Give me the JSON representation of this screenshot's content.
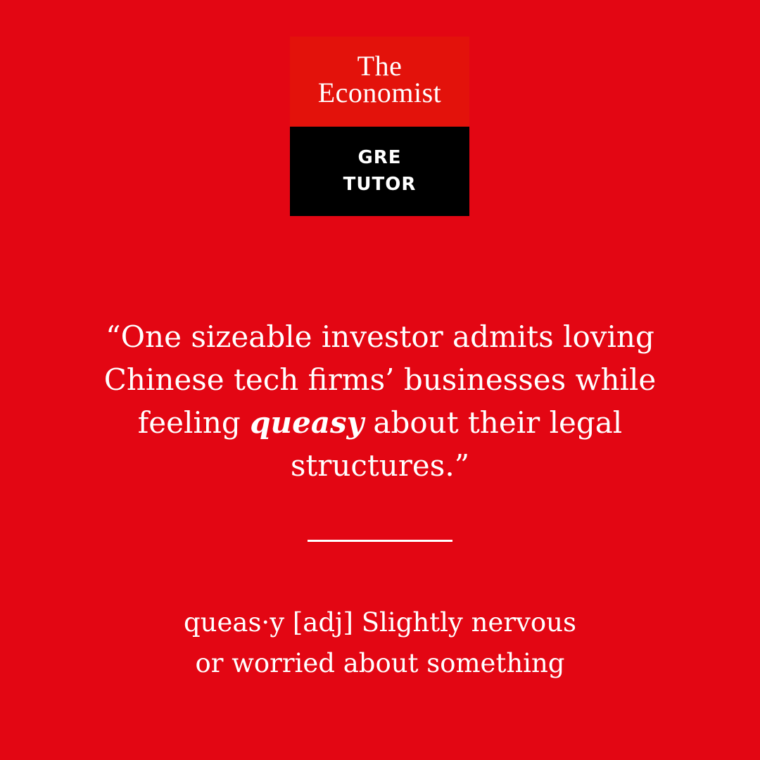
{
  "colors": {
    "background": "#e30613",
    "logo_top": "#e3120b",
    "logo_bottom": "#000000",
    "text": "#ffffff"
  },
  "logo": {
    "line1": "The",
    "line2": "Economist",
    "sub_line1": "GRE",
    "sub_line2": "TUTOR"
  },
  "quote": {
    "line1": "“One sizeable investor admits loving",
    "line2": "Chinese tech firms’ businesses while",
    "line3_before": "feeling ",
    "line3_emphasis": "queasy",
    "line3_after": " about their legal",
    "line4": "structures.”"
  },
  "definition": {
    "line1": "queas·y [adj] Slightly nervous",
    "line2": "or worried about something"
  }
}
